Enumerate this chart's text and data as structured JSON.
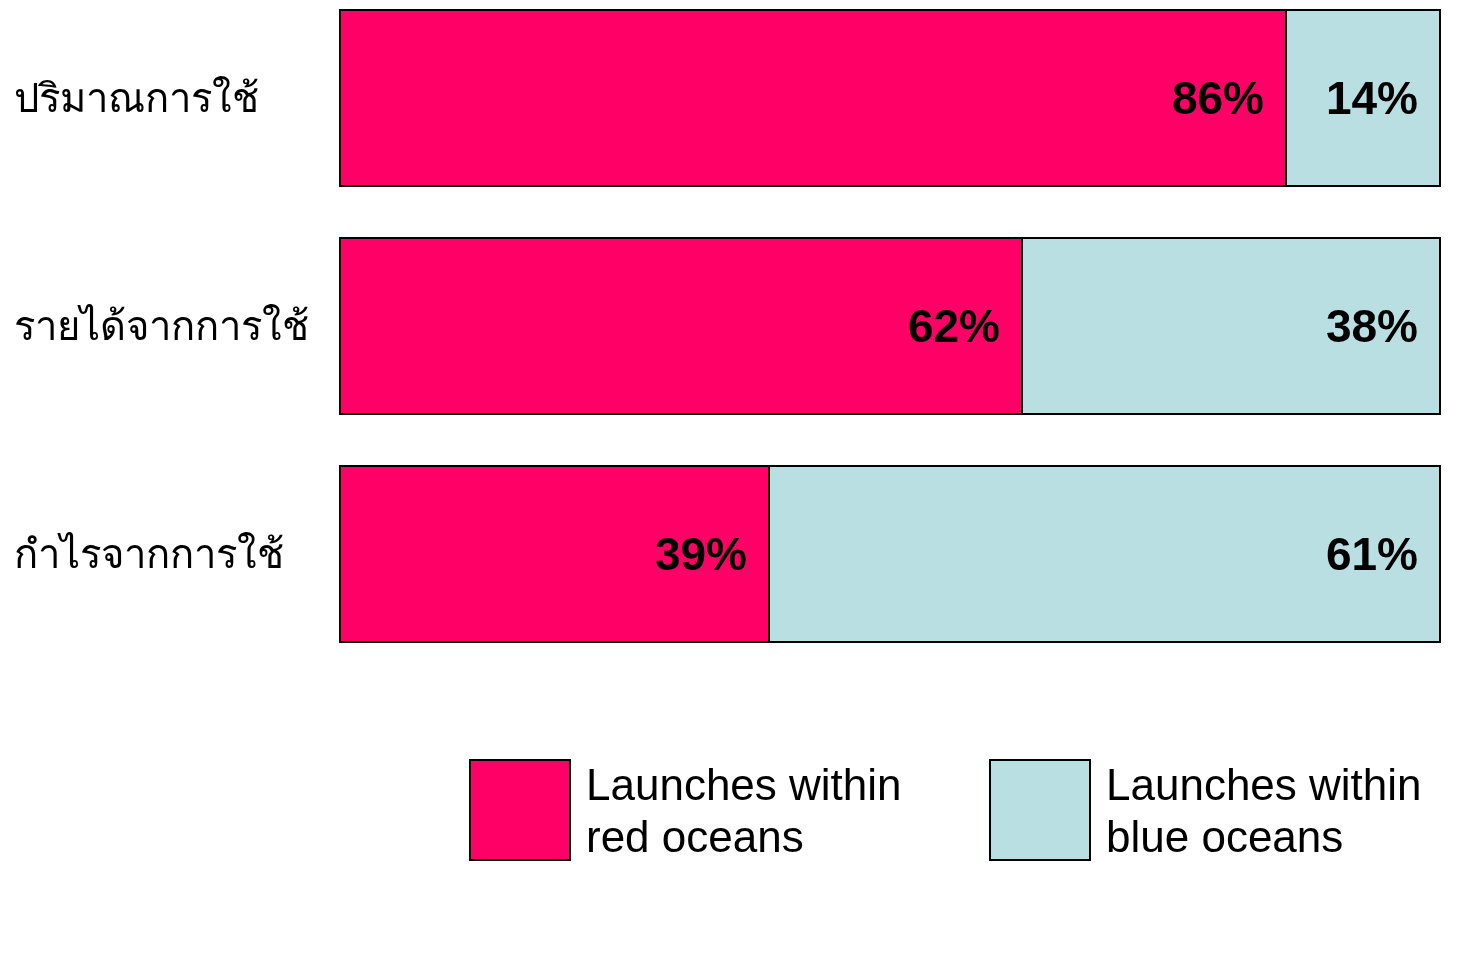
{
  "chart_data": {
    "type": "bar",
    "orientation": "horizontal",
    "stacked": true,
    "categories": [
      "ปริมาณการใช้",
      "รายได้จากการใช้",
      "กำไรจากการใช้"
    ],
    "xlim": [
      0,
      100
    ],
    "legend": "bottom",
    "series": [
      {
        "name": "Launches within red oceans",
        "color": "#ff0066",
        "values": [
          86,
          62,
          39
        ],
        "value_labels": [
          "86%",
          "62%",
          "39%"
        ]
      },
      {
        "name": "Launches within blue oceans",
        "color": "#b9dfe3",
        "values": [
          14,
          38,
          61
        ],
        "value_labels": [
          "14%",
          "38%",
          "61%"
        ]
      }
    ]
  }
}
